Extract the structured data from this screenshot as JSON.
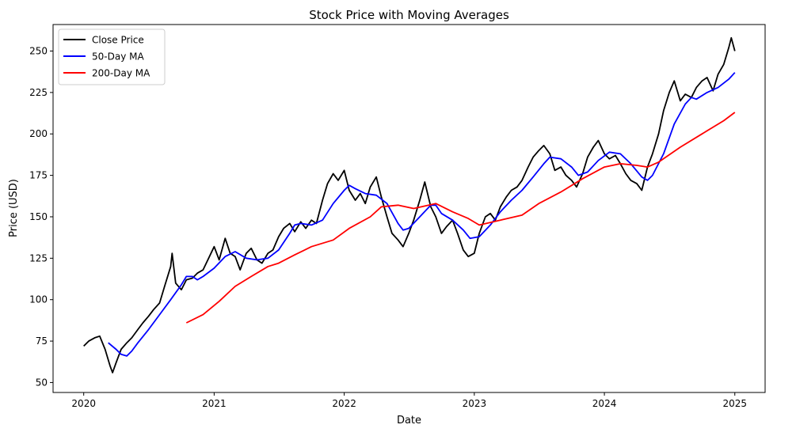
{
  "chart_data": {
    "type": "line",
    "title": "Stock Price with Moving Averages",
    "xlabel": "Date",
    "ylabel": "Price (USD)",
    "xlim": [
      "2019-10-07",
      "2025-03-27"
    ],
    "ylim": [
      44,
      266
    ],
    "x_ticks": [
      "2020",
      "2021",
      "2022",
      "2023",
      "2024",
      "2025"
    ],
    "y_ticks": [
      50,
      75,
      100,
      125,
      150,
      175,
      200,
      225,
      250
    ],
    "grid": false,
    "legend_position": "upper-left",
    "series": [
      {
        "name": "Close Price",
        "color": "#000000",
        "points": [
          [
            "2020-01-01",
            72
          ],
          [
            "2020-01-15",
            75
          ],
          [
            "2020-02-01",
            77
          ],
          [
            "2020-02-15",
            78
          ],
          [
            "2020-03-01",
            70
          ],
          [
            "2020-03-15",
            60
          ],
          [
            "2020-03-22",
            56
          ],
          [
            "2020-04-01",
            62
          ],
          [
            "2020-04-15",
            70
          ],
          [
            "2020-05-01",
            74
          ],
          [
            "2020-05-15",
            77
          ],
          [
            "2020-06-01",
            82
          ],
          [
            "2020-06-15",
            86
          ],
          [
            "2020-07-01",
            90
          ],
          [
            "2020-07-15",
            94
          ],
          [
            "2020-08-01",
            98
          ],
          [
            "2020-08-15",
            108
          ],
          [
            "2020-09-01",
            120
          ],
          [
            "2020-09-05",
            128
          ],
          [
            "2020-09-15",
            110
          ],
          [
            "2020-10-01",
            106
          ],
          [
            "2020-10-15",
            112
          ],
          [
            "2020-11-01",
            113
          ],
          [
            "2020-11-15",
            116
          ],
          [
            "2020-12-01",
            118
          ],
          [
            "2021-01-01",
            132
          ],
          [
            "2021-01-15",
            124
          ],
          [
            "2021-02-01",
            137
          ],
          [
            "2021-02-15",
            128
          ],
          [
            "2021-03-01",
            126
          ],
          [
            "2021-03-15",
            118
          ],
          [
            "2021-04-01",
            128
          ],
          [
            "2021-04-15",
            131
          ],
          [
            "2021-05-01",
            124
          ],
          [
            "2021-05-15",
            122
          ],
          [
            "2021-06-01",
            128
          ],
          [
            "2021-06-15",
            130
          ],
          [
            "2021-07-01",
            138
          ],
          [
            "2021-07-15",
            143
          ],
          [
            "2021-08-01",
            146
          ],
          [
            "2021-08-15",
            141
          ],
          [
            "2021-09-01",
            147
          ],
          [
            "2021-09-15",
            143
          ],
          [
            "2021-10-01",
            148
          ],
          [
            "2021-10-15",
            146
          ],
          [
            "2021-11-01",
            160
          ],
          [
            "2021-11-15",
            170
          ],
          [
            "2021-12-01",
            176
          ],
          [
            "2021-12-15",
            172
          ],
          [
            "2022-01-01",
            178
          ],
          [
            "2022-01-15",
            166
          ],
          [
            "2022-02-01",
            160
          ],
          [
            "2022-02-15",
            164
          ],
          [
            "2022-03-01",
            158
          ],
          [
            "2022-03-15",
            168
          ],
          [
            "2022-04-01",
            174
          ],
          [
            "2022-04-15",
            162
          ],
          [
            "2022-05-01",
            150
          ],
          [
            "2022-05-15",
            140
          ],
          [
            "2022-06-01",
            136
          ],
          [
            "2022-06-15",
            132
          ],
          [
            "2022-07-01",
            140
          ],
          [
            "2022-07-15",
            148
          ],
          [
            "2022-08-01",
            160
          ],
          [
            "2022-08-15",
            171
          ],
          [
            "2022-09-01",
            156
          ],
          [
            "2022-09-15",
            150
          ],
          [
            "2022-10-01",
            140
          ],
          [
            "2022-10-15",
            144
          ],
          [
            "2022-11-01",
            148
          ],
          [
            "2022-11-15",
            140
          ],
          [
            "2022-12-01",
            130
          ],
          [
            "2022-12-15",
            126
          ],
          [
            "2023-01-01",
            128
          ],
          [
            "2023-01-15",
            140
          ],
          [
            "2023-02-01",
            150
          ],
          [
            "2023-02-15",
            152
          ],
          [
            "2023-03-01",
            148
          ],
          [
            "2023-03-15",
            156
          ],
          [
            "2023-04-01",
            162
          ],
          [
            "2023-04-15",
            166
          ],
          [
            "2023-05-01",
            168
          ],
          [
            "2023-05-15",
            172
          ],
          [
            "2023-06-01",
            180
          ],
          [
            "2023-06-15",
            186
          ],
          [
            "2023-07-01",
            190
          ],
          [
            "2023-07-15",
            193
          ],
          [
            "2023-08-01",
            188
          ],
          [
            "2023-08-15",
            178
          ],
          [
            "2023-09-01",
            180
          ],
          [
            "2023-09-15",
            175
          ],
          [
            "2023-10-01",
            172
          ],
          [
            "2023-10-15",
            168
          ],
          [
            "2023-11-01",
            176
          ],
          [
            "2023-11-15",
            186
          ],
          [
            "2023-12-01",
            192
          ],
          [
            "2023-12-15",
            196
          ],
          [
            "2024-01-01",
            188
          ],
          [
            "2024-01-15",
            185
          ],
          [
            "2024-02-01",
            187
          ],
          [
            "2024-02-15",
            182
          ],
          [
            "2024-03-01",
            176
          ],
          [
            "2024-03-15",
            172
          ],
          [
            "2024-04-01",
            170
          ],
          [
            "2024-04-15",
            166
          ],
          [
            "2024-05-01",
            180
          ],
          [
            "2024-05-15",
            188
          ],
          [
            "2024-06-01",
            200
          ],
          [
            "2024-06-15",
            214
          ],
          [
            "2024-07-01",
            225
          ],
          [
            "2024-07-15",
            232
          ],
          [
            "2024-08-01",
            220
          ],
          [
            "2024-08-15",
            224
          ],
          [
            "2024-09-01",
            222
          ],
          [
            "2024-09-15",
            228
          ],
          [
            "2024-10-01",
            232
          ],
          [
            "2024-10-15",
            234
          ],
          [
            "2024-11-01",
            226
          ],
          [
            "2024-11-15",
            236
          ],
          [
            "2024-12-01",
            242
          ],
          [
            "2024-12-15",
            252
          ],
          [
            "2024-12-22",
            258
          ],
          [
            "2025-01-01",
            250
          ]
        ]
      },
      {
        "name": "50-Day MA",
        "color": "#0000ff",
        "points": [
          [
            "2020-03-10",
            74
          ],
          [
            "2020-04-01",
            70
          ],
          [
            "2020-04-15",
            67
          ],
          [
            "2020-05-01",
            66
          ],
          [
            "2020-05-15",
            69
          ],
          [
            "2020-06-01",
            74
          ],
          [
            "2020-07-01",
            82
          ],
          [
            "2020-08-01",
            91
          ],
          [
            "2020-09-01",
            100
          ],
          [
            "2020-10-01",
            109
          ],
          [
            "2020-10-15",
            114
          ],
          [
            "2020-11-01",
            114
          ],
          [
            "2020-11-15",
            112
          ],
          [
            "2020-12-01",
            114
          ],
          [
            "2021-01-01",
            119
          ],
          [
            "2021-02-01",
            126
          ],
          [
            "2021-03-01",
            129
          ],
          [
            "2021-04-01",
            125
          ],
          [
            "2021-05-01",
            124
          ],
          [
            "2021-06-01",
            125
          ],
          [
            "2021-07-01",
            130
          ],
          [
            "2021-08-01",
            140
          ],
          [
            "2021-08-15",
            145
          ],
          [
            "2021-09-01",
            146
          ],
          [
            "2021-10-01",
            145
          ],
          [
            "2021-11-01",
            148
          ],
          [
            "2021-12-01",
            158
          ],
          [
            "2022-01-01",
            166
          ],
          [
            "2022-01-15",
            169
          ],
          [
            "2022-02-01",
            167
          ],
          [
            "2022-03-01",
            164
          ],
          [
            "2022-04-01",
            163
          ],
          [
            "2022-05-01",
            158
          ],
          [
            "2022-06-01",
            146
          ],
          [
            "2022-06-15",
            142
          ],
          [
            "2022-07-01",
            143
          ],
          [
            "2022-08-01",
            150
          ],
          [
            "2022-09-01",
            157
          ],
          [
            "2022-09-15",
            157
          ],
          [
            "2022-10-01",
            152
          ],
          [
            "2022-11-01",
            148
          ],
          [
            "2022-12-01",
            142
          ],
          [
            "2022-12-20",
            137
          ],
          [
            "2023-01-15",
            138
          ],
          [
            "2023-02-15",
            145
          ],
          [
            "2023-03-15",
            153
          ],
          [
            "2023-04-15",
            160
          ],
          [
            "2023-05-15",
            166
          ],
          [
            "2023-06-15",
            174
          ],
          [
            "2023-07-15",
            182
          ],
          [
            "2023-08-01",
            186
          ],
          [
            "2023-09-01",
            185
          ],
          [
            "2023-10-01",
            180
          ],
          [
            "2023-10-20",
            175
          ],
          [
            "2023-11-15",
            177
          ],
          [
            "2023-12-15",
            184
          ],
          [
            "2024-01-15",
            189
          ],
          [
            "2024-02-15",
            188
          ],
          [
            "2024-03-15",
            182
          ],
          [
            "2024-04-15",
            174
          ],
          [
            "2024-05-01",
            172
          ],
          [
            "2024-05-15",
            175
          ],
          [
            "2024-06-15",
            188
          ],
          [
            "2024-07-15",
            206
          ],
          [
            "2024-08-15",
            218
          ],
          [
            "2024-09-01",
            222
          ],
          [
            "2024-09-15",
            221
          ],
          [
            "2024-10-15",
            225
          ],
          [
            "2024-11-15",
            228
          ],
          [
            "2024-12-15",
            233
          ],
          [
            "2025-01-01",
            237
          ]
        ]
      },
      {
        "name": "200-Day MA",
        "color": "#ff0000",
        "points": [
          [
            "2020-10-15",
            86
          ],
          [
            "2020-12-01",
            91
          ],
          [
            "2021-01-15",
            99
          ],
          [
            "2021-03-01",
            108
          ],
          [
            "2021-04-15",
            114
          ],
          [
            "2021-06-01",
            120
          ],
          [
            "2021-07-01",
            122
          ],
          [
            "2021-08-15",
            127
          ],
          [
            "2021-10-01",
            132
          ],
          [
            "2021-12-01",
            136
          ],
          [
            "2022-01-15",
            143
          ],
          [
            "2022-03-15",
            150
          ],
          [
            "2022-04-15",
            156
          ],
          [
            "2022-06-01",
            157
          ],
          [
            "2022-07-15",
            155
          ],
          [
            "2022-09-15",
            158
          ],
          [
            "2022-11-01",
            153
          ],
          [
            "2022-12-15",
            149
          ],
          [
            "2023-01-15",
            145
          ],
          [
            "2023-03-15",
            148
          ],
          [
            "2023-05-15",
            151
          ],
          [
            "2023-07-01",
            158
          ],
          [
            "2023-09-01",
            165
          ],
          [
            "2023-11-01",
            173
          ],
          [
            "2024-01-01",
            180
          ],
          [
            "2024-02-15",
            182
          ],
          [
            "2024-04-01",
            181
          ],
          [
            "2024-05-01",
            180
          ],
          [
            "2024-06-01",
            183
          ],
          [
            "2024-08-01",
            192
          ],
          [
            "2024-10-01",
            200
          ],
          [
            "2024-12-01",
            208
          ],
          [
            "2025-01-01",
            213
          ]
        ]
      }
    ]
  }
}
